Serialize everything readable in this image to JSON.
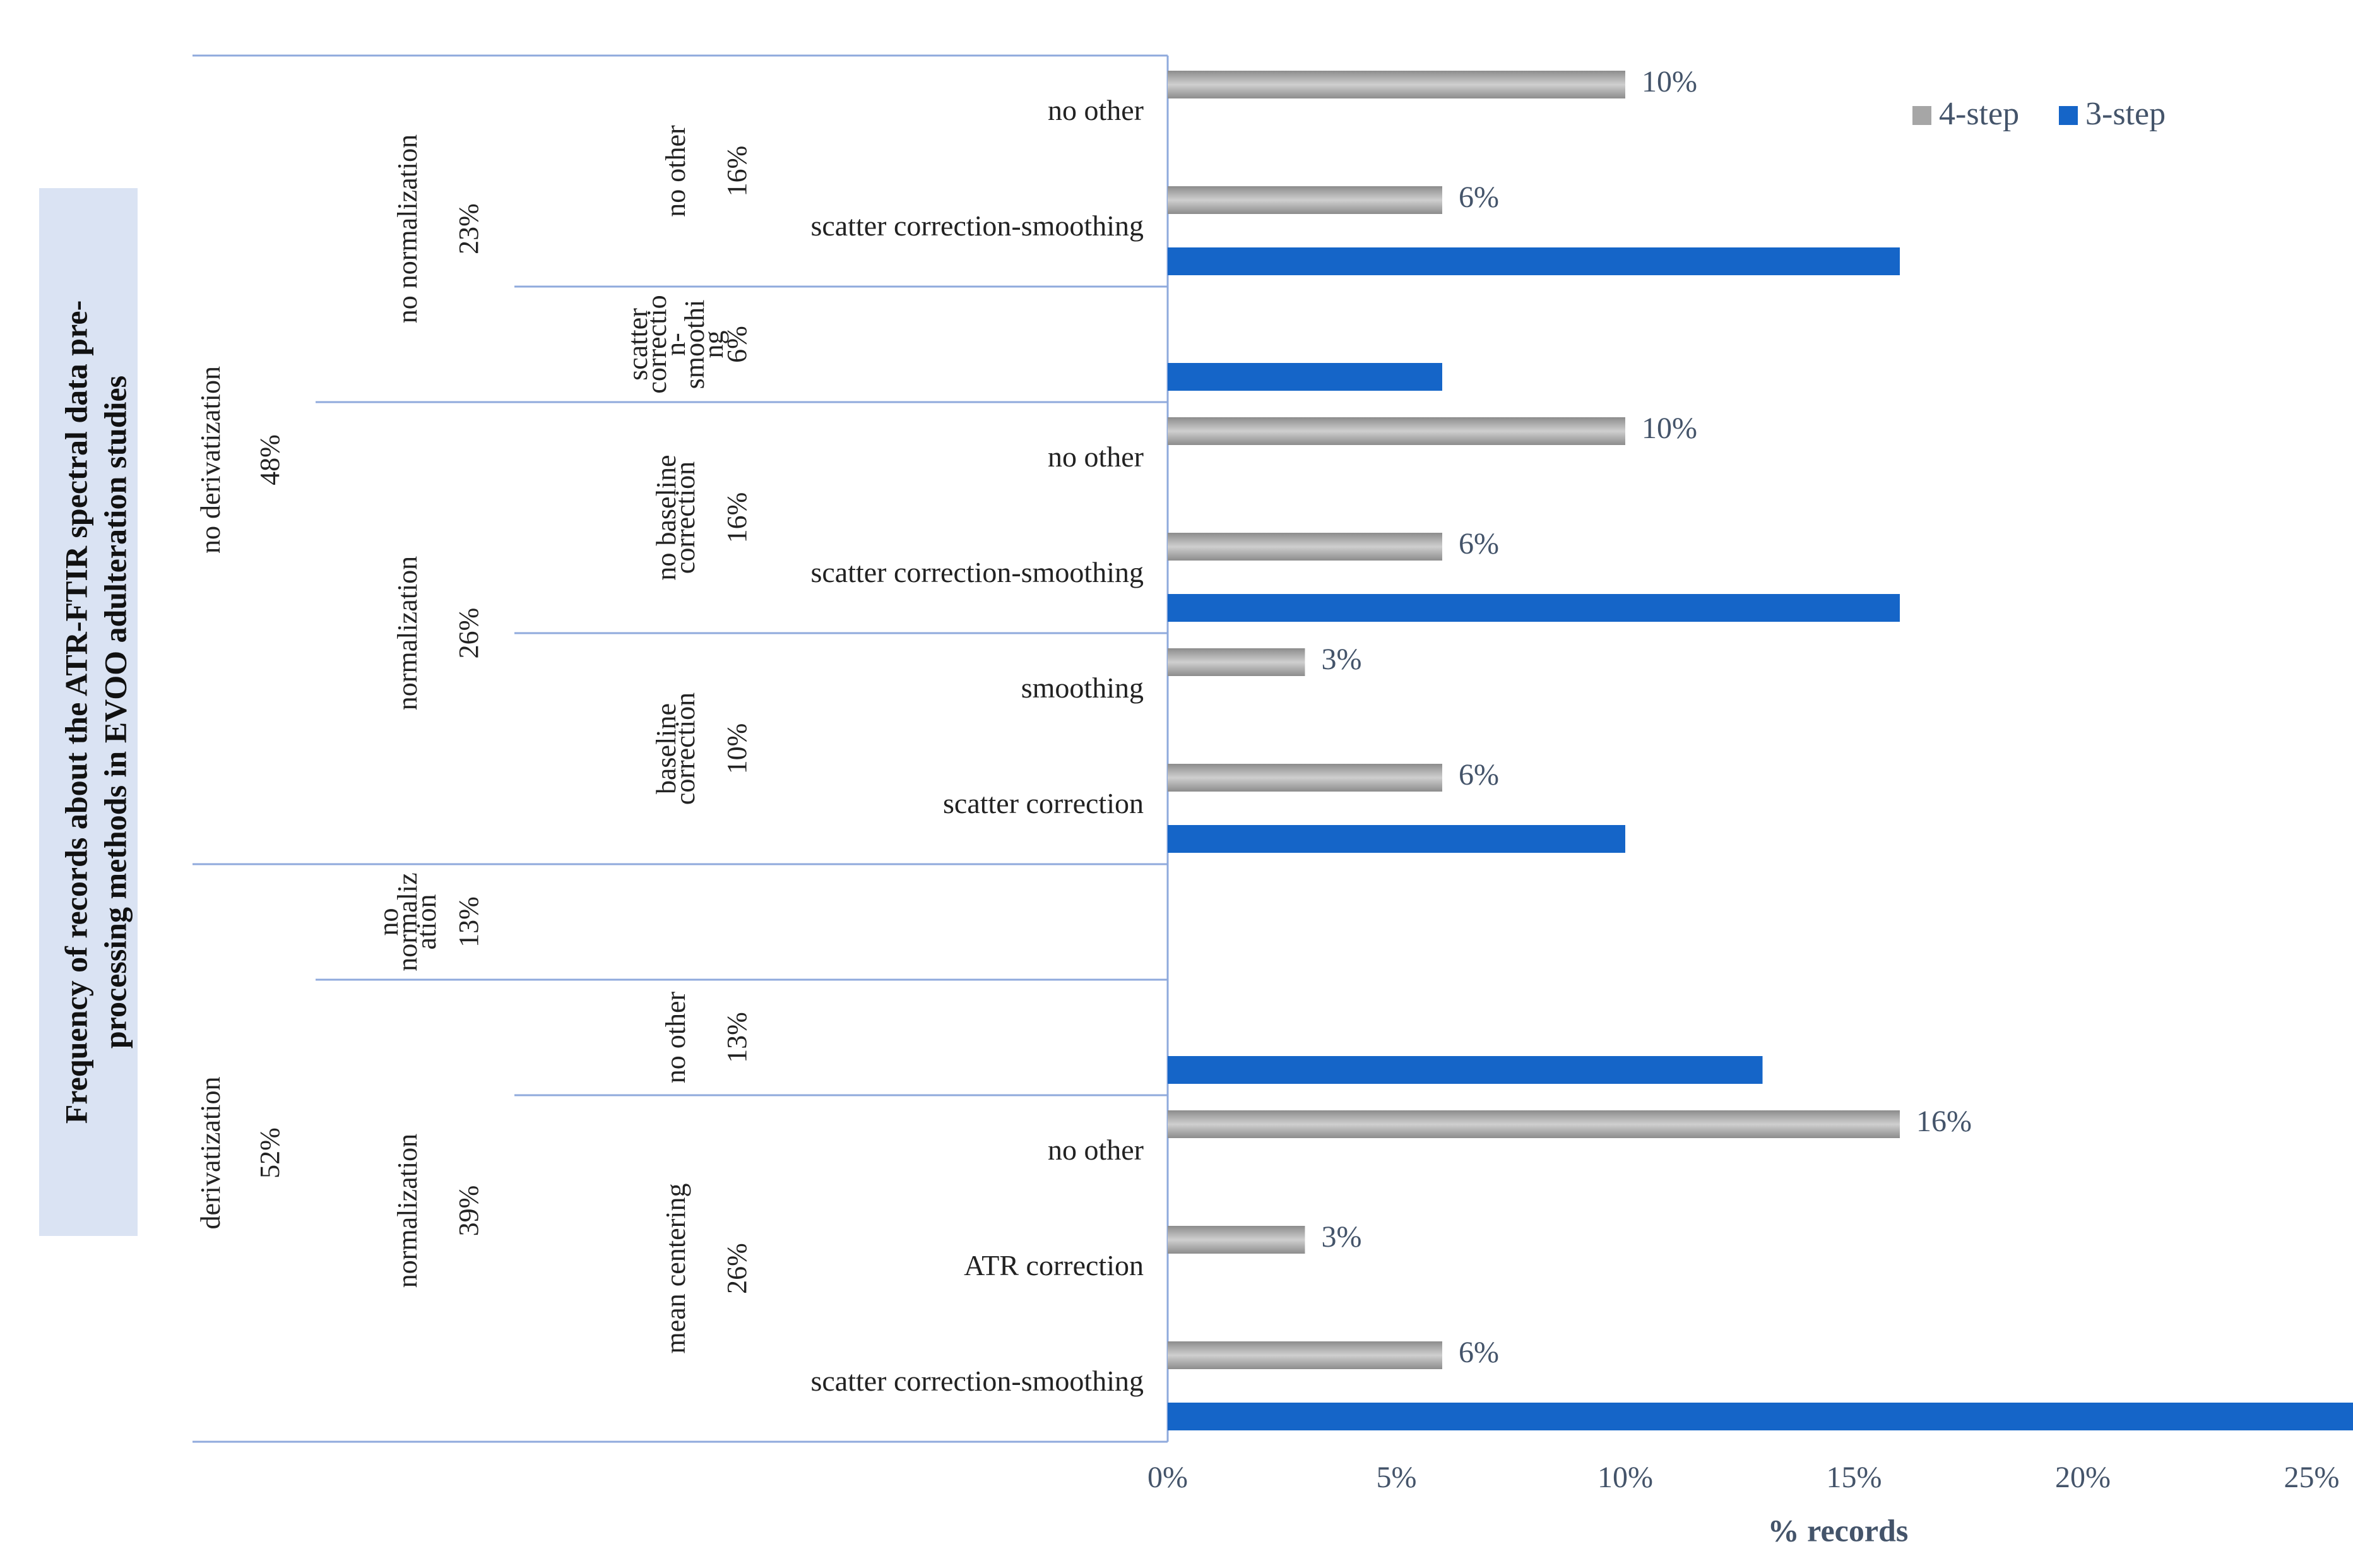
{
  "chart_data": {
    "type": "bar",
    "orientation": "horizontal",
    "title": "Frequency of records about the ATR-FTIR spectral data pre-processing methods in EVOO adulteration studies",
    "title_lines": [
      "Frequency of records about the ATR-FTIR spectral data pre-",
      "processing methods in EVOO adulteration studies"
    ],
    "xlabel": "% records",
    "xlim": [
      0,
      26
    ],
    "x_ticks": [
      {
        "value": 0,
        "label": "0%"
      },
      {
        "value": 5,
        "label": "5%"
      },
      {
        "value": 10,
        "label": "10%"
      },
      {
        "value": 15,
        "label": "15%"
      },
      {
        "value": 20,
        "label": "20%"
      },
      {
        "value": 25,
        "label": "25%"
      }
    ],
    "legend_position": "top-right",
    "series": [
      {
        "name": "4-step",
        "color": "#a6a6a6"
      },
      {
        "name": "3-step",
        "color": "#1565c8"
      }
    ],
    "categories": [
      {
        "label": "no other",
        "four_step": 10,
        "four_label": "10%",
        "three_step": null
      },
      {
        "label": "scatter correction-smoothing",
        "four_step": 6,
        "four_label": "6%",
        "three_step": 16
      },
      {
        "label": "",
        "four_step": null,
        "four_label": "",
        "three_step": 6
      },
      {
        "label": "no other",
        "four_step": 10,
        "four_label": "10%",
        "three_step": null
      },
      {
        "label": "scatter correction-smoothing",
        "four_step": 6,
        "four_label": "6%",
        "three_step": 16
      },
      {
        "label": "smoothing",
        "four_step": 3,
        "four_label": "3%",
        "three_step": null
      },
      {
        "label": "scatter correction",
        "four_step": 6,
        "four_label": "6%",
        "three_step": 10
      },
      {
        "label": "",
        "four_step": null,
        "four_label": "",
        "three_step": null
      },
      {
        "label": "",
        "four_step": null,
        "four_label": "",
        "three_step": 13
      },
      {
        "label": "no other",
        "four_step": 16,
        "four_label": "16%",
        "three_step": null
      },
      {
        "label": "ATR correction",
        "four_step": 3,
        "four_label": "3%",
        "three_step": null
      },
      {
        "label": "scatter correction-smoothing",
        "four_step": 6,
        "four_label": "6%",
        "three_step": 26
      }
    ],
    "hierarchy": {
      "level1": [
        {
          "lines": [
            "no derivatization"
          ],
          "pct": "48%",
          "start": 0,
          "end": 7
        },
        {
          "lines": [
            "derivatization"
          ],
          "pct": "52%",
          "start": 7,
          "end": 12
        }
      ],
      "level2": [
        {
          "lines": [
            "no normalization"
          ],
          "pct": "23%",
          "start": 0,
          "end": 3
        },
        {
          "lines": [
            "normalization"
          ],
          "pct": "26%",
          "start": 3,
          "end": 7
        },
        {
          "lines": [
            "no",
            "normaliz",
            "ation"
          ],
          "pct": "13%",
          "start": 7,
          "end": 8
        },
        {
          "lines": [
            "normalization"
          ],
          "pct": "39%",
          "start": 8,
          "end": 12
        }
      ],
      "level3": [
        {
          "lines": [
            "no other"
          ],
          "pct": "16%",
          "start": 0,
          "end": 2
        },
        {
          "lines": [
            "scatter",
            "correctio",
            "n-",
            "smoothi",
            "ng"
          ],
          "pct": "6%",
          "start": 2,
          "end": 3
        },
        {
          "lines": [
            "no baseline",
            "correction"
          ],
          "pct": "16%",
          "start": 3,
          "end": 5
        },
        {
          "lines": [
            "baseline",
            "correction"
          ],
          "pct": "10%",
          "start": 5,
          "end": 7
        },
        {
          "lines": [],
          "pct": "",
          "start": 7,
          "end": 8
        },
        {
          "lines": [
            "no other"
          ],
          "pct": "13%",
          "start": 8,
          "end": 9
        },
        {
          "lines": [
            "mean centering"
          ],
          "pct": "26%",
          "start": 9,
          "end": 12
        }
      ]
    }
  },
  "colors": {
    "four_step": "#a6a6a6",
    "three_step": "#1565c8",
    "axis_line": "#8faadc",
    "title_bg": "#dae3f3",
    "tick_text": "#44546a",
    "label_text": "#222222"
  }
}
